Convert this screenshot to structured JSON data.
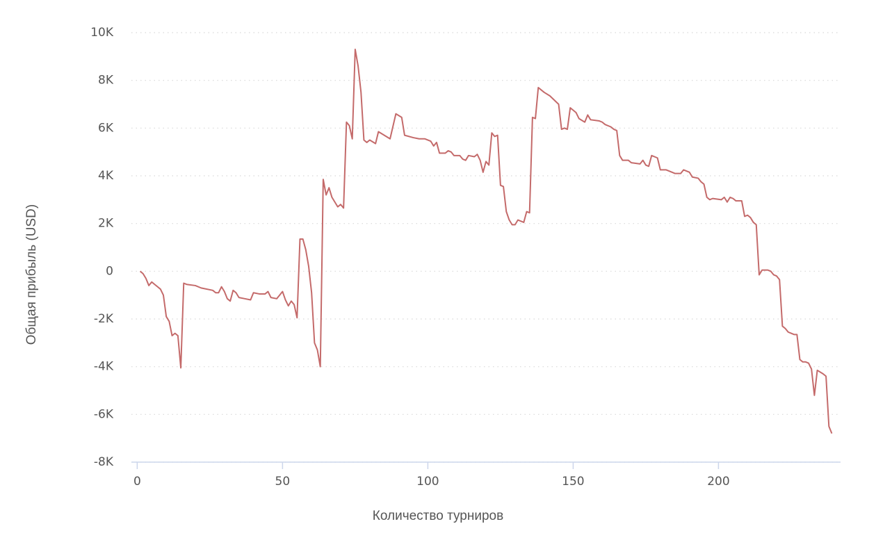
{
  "chart_data": {
    "type": "line",
    "x_label": "Количество турниров",
    "y_label": "Общая прибыль (USD)",
    "color": "#c46a6a",
    "grid": true,
    "xlim": [
      -2,
      242
    ],
    "ylim": [
      -8000,
      10000
    ],
    "xticks": [
      0,
      50,
      100,
      150,
      200
    ],
    "yticks": [
      {
        "value": -8000,
        "label": "-8K"
      },
      {
        "value": -6000,
        "label": "-6K"
      },
      {
        "value": -4000,
        "label": "-4K"
      },
      {
        "value": -2000,
        "label": "-2K"
      },
      0,
      {
        "value": 2000,
        "label": "2K"
      },
      {
        "value": 4000,
        "label": "4K"
      },
      {
        "value": 6000,
        "label": "6K"
      },
      {
        "value": 8000,
        "label": "8K"
      },
      {
        "value": 10000,
        "label": "10K"
      }
    ],
    "x": [
      1,
      2,
      3,
      4,
      5,
      6,
      7,
      8,
      9,
      10,
      11,
      12,
      13,
      14,
      15,
      16,
      17,
      20,
      22,
      26,
      27,
      28,
      29,
      30,
      31,
      32,
      33,
      34,
      35,
      37,
      39,
      40,
      42,
      44,
      45,
      46,
      48,
      50,
      51,
      52,
      53,
      54,
      55,
      56,
      57,
      58,
      59,
      60,
      61,
      62,
      63,
      64,
      65,
      66,
      67,
      68,
      69,
      70,
      71,
      72,
      73,
      74,
      75,
      76,
      77,
      78,
      79,
      80,
      82,
      83,
      87,
      89,
      91,
      92,
      95,
      97,
      99,
      101,
      102,
      103,
      104,
      106,
      107,
      108,
      109,
      111,
      112,
      113,
      114,
      116,
      117,
      118,
      119,
      120,
      121,
      122,
      123,
      124,
      125,
      126,
      127,
      128,
      129,
      130,
      131,
      133,
      134,
      135,
      136,
      137,
      138,
      140,
      142,
      145,
      146,
      147,
      148,
      149,
      151,
      152,
      154,
      155,
      156,
      159,
      160,
      161,
      163,
      164,
      165,
      166,
      167,
      169,
      170,
      173,
      174,
      175,
      176,
      177,
      179,
      180,
      182,
      184,
      185,
      187,
      188,
      190,
      191,
      193,
      194,
      195,
      196,
      197,
      198,
      201,
      202,
      203,
      204,
      205,
      206,
      208,
      209,
      210,
      211,
      212,
      213,
      214,
      215,
      217,
      218,
      219,
      220,
      221,
      222,
      223,
      224,
      225,
      226,
      227,
      228,
      229,
      230,
      231,
      232,
      233,
      234,
      236,
      237,
      238,
      239
    ],
    "values": [
      0,
      -100,
      -300,
      -600,
      -450,
      -550,
      -650,
      -750,
      -1000,
      -1900,
      -2100,
      -2700,
      -2600,
      -2700,
      -4050,
      -500,
      -550,
      -600,
      -700,
      -800,
      -900,
      -900,
      -650,
      -850,
      -1150,
      -1250,
      -800,
      -900,
      -1100,
      -1150,
      -1200,
      -900,
      -950,
      -950,
      -850,
      -1100,
      -1150,
      -850,
      -1200,
      -1450,
      -1250,
      -1400,
      -1950,
      1350,
      1350,
      900,
      200,
      -900,
      -3000,
      -3300,
      -4000,
      3850,
      3200,
      3500,
      3100,
      2900,
      2700,
      2800,
      2650,
      6250,
      6100,
      5550,
      9300,
      8600,
      7500,
      5500,
      5400,
      5500,
      5350,
      5850,
      5550,
      6600,
      6450,
      5700,
      5600,
      5550,
      5550,
      5450,
      5250,
      5400,
      4950,
      4950,
      5050,
      5000,
      4850,
      4850,
      4700,
      4650,
      4850,
      4800,
      4900,
      4650,
      4150,
      4600,
      4450,
      5800,
      5650,
      5700,
      3600,
      3550,
      2500,
      2150,
      1950,
      1950,
      2150,
      2050,
      2500,
      2450,
      6450,
      6400,
      7700,
      7500,
      7350,
      7000,
      5950,
      6000,
      5950,
      6850,
      6650,
      6400,
      6250,
      6550,
      6350,
      6300,
      6250,
      6150,
      6050,
      5950,
      5900,
      4850,
      4650,
      4650,
      4550,
      4500,
      4650,
      4450,
      4400,
      4850,
      4750,
      4250,
      4250,
      4150,
      4100,
      4100,
      4250,
      4150,
      3950,
      3900,
      3750,
      3650,
      3100,
      3000,
      3050,
      3000,
      3100,
      2900,
      3100,
      3050,
      2950,
      2950,
      2300,
      2350,
      2250,
      2050,
      1950,
      -150,
      50,
      50,
      0,
      -150,
      -200,
      -350,
      -2300,
      -2400,
      -2550,
      -2600,
      -2650,
      -2650,
      -3700,
      -3800,
      -3800,
      -3850,
      -4100,
      -5200,
      -4150,
      -4300,
      -4400,
      -6500,
      -6800
    ]
  }
}
